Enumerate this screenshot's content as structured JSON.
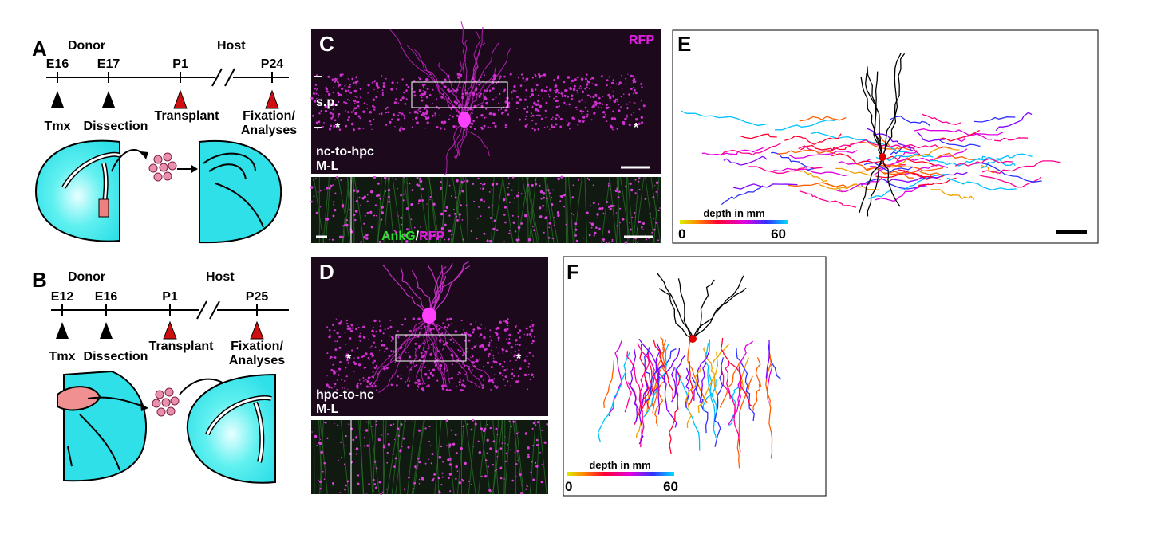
{
  "panels": {
    "A": {
      "label": "A",
      "donor": "Donor",
      "host": "Host",
      "timepoints": [
        "E16",
        "E17",
        "P1",
        "P24"
      ],
      "events": [
        "Tmx",
        "Dissection",
        "Transplant",
        "Fixation/",
        "Analyses"
      ]
    },
    "B": {
      "label": "B",
      "donor": "Donor",
      "host": "Host",
      "timepoints": [
        "E12",
        "E16",
        "P1",
        "P25"
      ],
      "events": [
        "Tmx",
        "Dissection",
        "Transplant",
        "Fixation/",
        "Analyses"
      ]
    },
    "C": {
      "label": "C",
      "marker": "RFP",
      "layer": "s.p.",
      "asterisks": [
        "*",
        "*"
      ],
      "condition": "nc-to-hpc",
      "axis": "M-L",
      "stain_green": "AnkG",
      "stain_sep": "/",
      "stain_magenta": "RFP"
    },
    "D": {
      "label": "D",
      "asterisks": [
        "*",
        "*"
      ],
      "condition": "hpc-to-nc",
      "axis": "M-L"
    },
    "E": {
      "label": "E",
      "colorbar_title": "depth in mm",
      "colorbar_min": "0",
      "colorbar_max": "60"
    },
    "F": {
      "label": "F",
      "colorbar_title": "depth in mm",
      "colorbar_min": "0",
      "colorbar_max": "60"
    }
  }
}
